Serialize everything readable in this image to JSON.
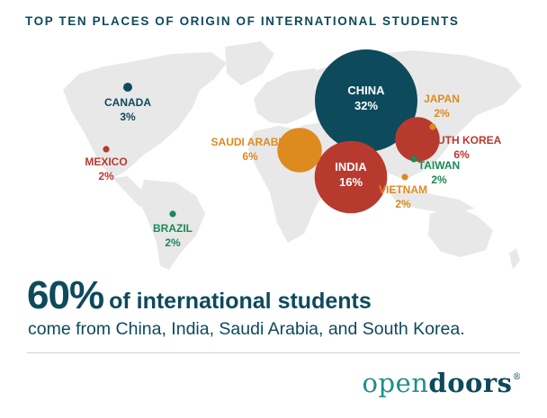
{
  "title": "TOP TEN PLACES OF ORIGIN OF INTERNATIONAL STUDENTS",
  "headline": {
    "big": "60%",
    "rest": "of international students",
    "sub": "come from China, India, Saudi Arabia, and South Korea."
  },
  "logo": {
    "open": "open",
    "doors": "doors",
    "reg": "®"
  },
  "colors": {
    "navy": "#0d4a5c",
    "red": "#b83a2e",
    "orange": "#dd8a1f",
    "green": "#1b8a57",
    "map": "#e8e8e8"
  },
  "chart_data": {
    "type": "bubble-map",
    "title": "TOP TEN PLACES OF ORIGIN OF INTERNATIONAL STUDENTS",
    "unit": "%",
    "points": [
      {
        "name": "CHINA",
        "value": 32,
        "label": "32%",
        "color": "#0d4a5c"
      },
      {
        "name": "INDIA",
        "value": 16,
        "label": "16%",
        "color": "#b83a2e"
      },
      {
        "name": "SAUDI ARABIA",
        "value": 6,
        "label": "6%",
        "color": "#dd8a1f"
      },
      {
        "name": "SOUTH KOREA",
        "value": 6,
        "label": "6%",
        "color": "#b83a2e"
      },
      {
        "name": "CANADA",
        "value": 3,
        "label": "3%",
        "color": "#0d4a5c"
      },
      {
        "name": "JAPAN",
        "value": 2,
        "label": "2%",
        "color": "#dd8a1f"
      },
      {
        "name": "MEXICO",
        "value": 2,
        "label": "2%",
        "color": "#b83a2e"
      },
      {
        "name": "TAIWAN",
        "value": 2,
        "label": "2%",
        "color": "#1b8a57"
      },
      {
        "name": "VIETNAM",
        "value": 2,
        "label": "2%",
        "color": "#dd8a1f"
      },
      {
        "name": "BRAZIL",
        "value": 2,
        "label": "2%",
        "color": "#1b8a57"
      }
    ]
  }
}
